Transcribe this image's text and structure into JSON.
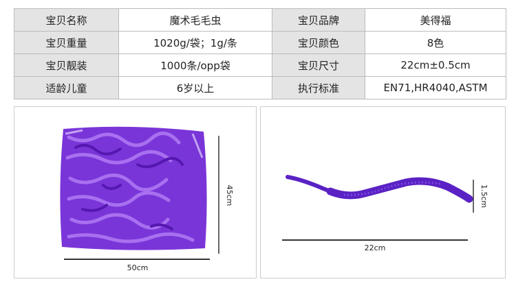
{
  "table": {
    "rows": [
      [
        "宝贝名称",
        "魔术毛毛虫",
        "宝贝品牌",
        "美得福"
      ],
      [
        "宝贝重量",
        "1020g/袋；1g/条",
        "宝贝颜色",
        "8色"
      ],
      [
        "宝贝靓装",
        "1000条/opp袋",
        "宝贝尺寸",
        "22cm±0.5cm"
      ],
      [
        "适龄儿童",
        "6岁以上",
        "执行标准",
        "EN71,HR4040,ASTM"
      ]
    ]
  },
  "images": [
    {
      "dimensions": [
        "45cm",
        "50cm"
      ]
    },
    {
      "dimensions": [
        "1.5cm",
        "22cm"
      ]
    }
  ]
}
